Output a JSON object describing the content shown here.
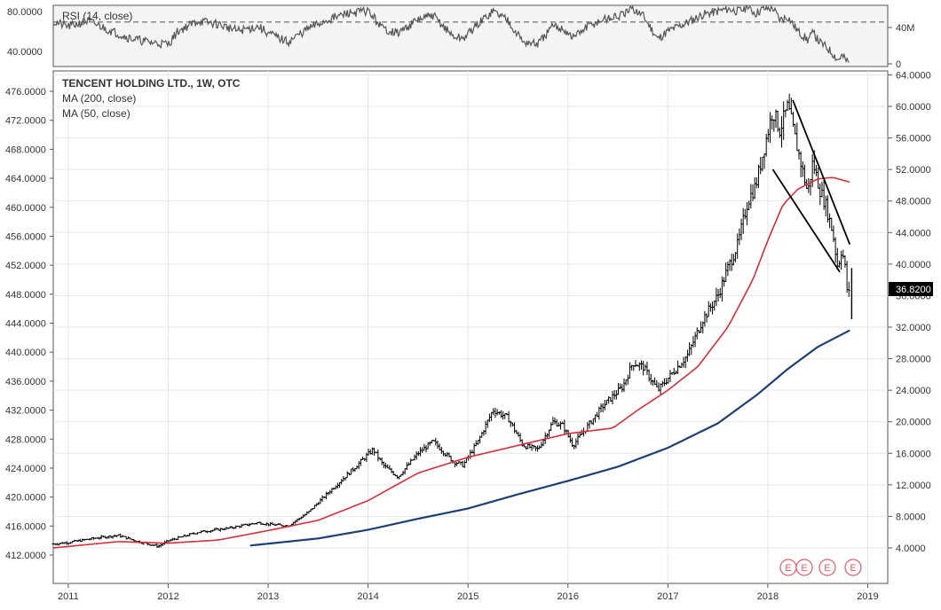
{
  "chart_data": {
    "type": "line",
    "title": "TENCENT HOLDING LTD., 1W, OTC",
    "legend": [
      "MA (200, close)",
      "MA (50, close)"
    ],
    "legend_placement": "top-left",
    "price_axis_right": {
      "ticks": [
        "64.0000",
        "60.0000",
        "56.0000",
        "52.0000",
        "48.0000",
        "44.0000",
        "40.0000",
        "36.0000",
        "32.0000",
        "28.0000",
        "24.0000",
        "20.0000",
        "16.0000",
        "12.0000",
        "8.0000",
        "4.0000"
      ],
      "range": [
        -0.5,
        64.5
      ]
    },
    "price_axis_left": {
      "ticks": [
        "476.0000",
        "472.0000",
        "468.0000",
        "464.0000",
        "460.0000",
        "456.0000",
        "452.0000",
        "448.0000",
        "444.0000",
        "440.0000",
        "436.0000",
        "432.0000",
        "428.0000",
        "424.0000",
        "420.0000",
        "416.0000",
        "412.0000"
      ]
    },
    "x_axis": {
      "ticks": [
        "2011",
        "2012",
        "2013",
        "2014",
        "2015",
        "2016",
        "2017",
        "2018",
        "2019"
      ],
      "range": [
        2010.85,
        2019.2
      ]
    },
    "last_price_label": "36.8200",
    "earnings_markers": [
      "E",
      "E",
      "E",
      "E"
    ],
    "grid": true,
    "price_anchors": [
      [
        2010.85,
        4.5
      ],
      [
        2011.0,
        4.7
      ],
      [
        2011.3,
        5.3
      ],
      [
        2011.5,
        5.6
      ],
      [
        2011.7,
        4.8
      ],
      [
        2011.9,
        4.2
      ],
      [
        2012.0,
        4.9
      ],
      [
        2012.3,
        6.0
      ],
      [
        2012.6,
        6.5
      ],
      [
        2012.9,
        7.2
      ],
      [
        2013.0,
        7.0
      ],
      [
        2013.2,
        6.8
      ],
      [
        2013.4,
        8.5
      ],
      [
        2013.6,
        11.0
      ],
      [
        2013.85,
        14.0
      ],
      [
        2014.05,
        16.5
      ],
      [
        2014.15,
        14.5
      ],
      [
        2014.3,
        13.0
      ],
      [
        2014.5,
        16.0
      ],
      [
        2014.65,
        17.5
      ],
      [
        2014.85,
        15.0
      ],
      [
        2014.95,
        14.5
      ],
      [
        2015.1,
        17.5
      ],
      [
        2015.25,
        21.5
      ],
      [
        2015.4,
        20.5
      ],
      [
        2015.55,
        17.0
      ],
      [
        2015.7,
        16.5
      ],
      [
        2015.85,
        20.0
      ],
      [
        2015.95,
        19.5
      ],
      [
        2016.05,
        17.0
      ],
      [
        2016.2,
        19.5
      ],
      [
        2016.35,
        22.0
      ],
      [
        2016.55,
        24.5
      ],
      [
        2016.65,
        27.5
      ],
      [
        2016.75,
        27.0
      ],
      [
        2016.9,
        24.0
      ],
      [
        2017.0,
        25.5
      ],
      [
        2017.2,
        28.5
      ],
      [
        2017.35,
        33.0
      ],
      [
        2017.5,
        36.0
      ],
      [
        2017.6,
        39.5
      ],
      [
        2017.7,
        42.5
      ],
      [
        2017.8,
        48.0
      ],
      [
        2017.88,
        50.0
      ],
      [
        2017.95,
        54.0
      ],
      [
        2018.05,
        59.5
      ],
      [
        2018.12,
        57.0
      ],
      [
        2018.2,
        60.0
      ],
      [
        2018.3,
        54.5
      ],
      [
        2018.4,
        49.0
      ],
      [
        2018.45,
        53.0
      ],
      [
        2018.52,
        49.5
      ],
      [
        2018.58,
        47.5
      ],
      [
        2018.65,
        44.0
      ],
      [
        2018.7,
        39.5
      ],
      [
        2018.74,
        42.0
      ],
      [
        2018.78,
        39.0
      ],
      [
        2018.8,
        35.5
      ],
      [
        2018.82,
        36.8
      ]
    ],
    "series": [
      {
        "name": "MA (50, close)",
        "color": "#d32f3b",
        "points": [
          [
            2010.85,
            4.0
          ],
          [
            2011.5,
            4.8
          ],
          [
            2012.0,
            4.6
          ],
          [
            2012.5,
            5.0
          ],
          [
            2013.0,
            6.2
          ],
          [
            2013.5,
            7.5
          ],
          [
            2014.0,
            10.0
          ],
          [
            2014.5,
            13.5
          ],
          [
            2015.0,
            15.5
          ],
          [
            2015.5,
            17.0
          ],
          [
            2016.0,
            18.5
          ],
          [
            2016.45,
            19.2
          ],
          [
            2016.7,
            21.5
          ],
          [
            2017.0,
            24.0
          ],
          [
            2017.3,
            27.0
          ],
          [
            2017.6,
            32.0
          ],
          [
            2017.85,
            38.0
          ],
          [
            2018.0,
            43.0
          ],
          [
            2018.15,
            47.5
          ],
          [
            2018.3,
            49.5
          ],
          [
            2018.5,
            50.8
          ],
          [
            2018.65,
            51.0
          ],
          [
            2018.82,
            50.4
          ]
        ]
      },
      {
        "name": "MA (200, close)",
        "color": "#1f3f73",
        "points": [
          [
            2012.82,
            4.3
          ],
          [
            2013.5,
            5.2
          ],
          [
            2014.0,
            6.3
          ],
          [
            2014.5,
            7.7
          ],
          [
            2015.0,
            9.0
          ],
          [
            2015.5,
            10.8
          ],
          [
            2016.0,
            12.5
          ],
          [
            2016.5,
            14.3
          ],
          [
            2017.0,
            16.7
          ],
          [
            2017.5,
            19.8
          ],
          [
            2017.9,
            23.5
          ],
          [
            2018.2,
            26.7
          ],
          [
            2018.5,
            29.5
          ],
          [
            2018.82,
            31.6
          ]
        ]
      }
    ],
    "trendlines": [
      {
        "from": [
          2018.25,
          60.8
        ],
        "to": [
          2018.82,
          42.5
        ]
      },
      {
        "from": [
          2018.05,
          52.0
        ],
        "to": [
          2018.72,
          39.0
        ]
      }
    ],
    "rsi_panel": {
      "label": "RSI (14, close)",
      "left_ticks": [
        "80.0000",
        "40.0000"
      ],
      "right_ticks": [
        "40M",
        "0"
      ],
      "range": [
        30,
        85
      ],
      "dashed_levels": [
        70,
        30
      ],
      "points": [
        [
          2010.85,
          70
        ],
        [
          2011.0,
          66
        ],
        [
          2011.2,
          71
        ],
        [
          2011.4,
          63
        ],
        [
          2011.6,
          56
        ],
        [
          2011.8,
          52
        ],
        [
          2012.0,
          50
        ],
        [
          2012.1,
          62
        ],
        [
          2012.3,
          71
        ],
        [
          2012.5,
          68
        ],
        [
          2012.7,
          62
        ],
        [
          2012.9,
          66
        ],
        [
          2013.0,
          60
        ],
        [
          2013.2,
          52
        ],
        [
          2013.4,
          64
        ],
        [
          2013.6,
          72
        ],
        [
          2013.8,
          78
        ],
        [
          2014.0,
          80
        ],
        [
          2014.15,
          64
        ],
        [
          2014.3,
          60
        ],
        [
          2014.5,
          72
        ],
        [
          2014.65,
          76
        ],
        [
          2014.85,
          57
        ],
        [
          2014.95,
          55
        ],
        [
          2015.1,
          68
        ],
        [
          2015.25,
          80
        ],
        [
          2015.4,
          72
        ],
        [
          2015.55,
          52
        ],
        [
          2015.7,
          50
        ],
        [
          2015.85,
          66
        ],
        [
          2015.95,
          64
        ],
        [
          2016.05,
          56
        ],
        [
          2016.2,
          66
        ],
        [
          2016.35,
          72
        ],
        [
          2016.55,
          76
        ],
        [
          2016.65,
          82
        ],
        [
          2016.75,
          76
        ],
        [
          2016.9,
          55
        ],
        [
          2017.0,
          62
        ],
        [
          2017.2,
          70
        ],
        [
          2017.35,
          77
        ],
        [
          2017.5,
          80
        ],
        [
          2017.6,
          82
        ],
        [
          2017.7,
          80
        ],
        [
          2017.8,
          83
        ],
        [
          2017.88,
          78
        ],
        [
          2017.95,
          82
        ],
        [
          2018.05,
          83
        ],
        [
          2018.12,
          72
        ],
        [
          2018.2,
          75
        ],
        [
          2018.3,
          62
        ],
        [
          2018.4,
          54
        ],
        [
          2018.45,
          60
        ],
        [
          2018.52,
          52
        ],
        [
          2018.58,
          48
        ],
        [
          2018.65,
          42
        ],
        [
          2018.7,
          36
        ],
        [
          2018.74,
          40
        ],
        [
          2018.78,
          36
        ],
        [
          2018.82,
          33
        ]
      ]
    },
    "colors": {
      "ohlc": "#000000",
      "trendline": "#000000",
      "price_tag_bg": "#000000",
      "earnings": "#e05a66",
      "panel_bg": "#f4f4f4"
    }
  }
}
